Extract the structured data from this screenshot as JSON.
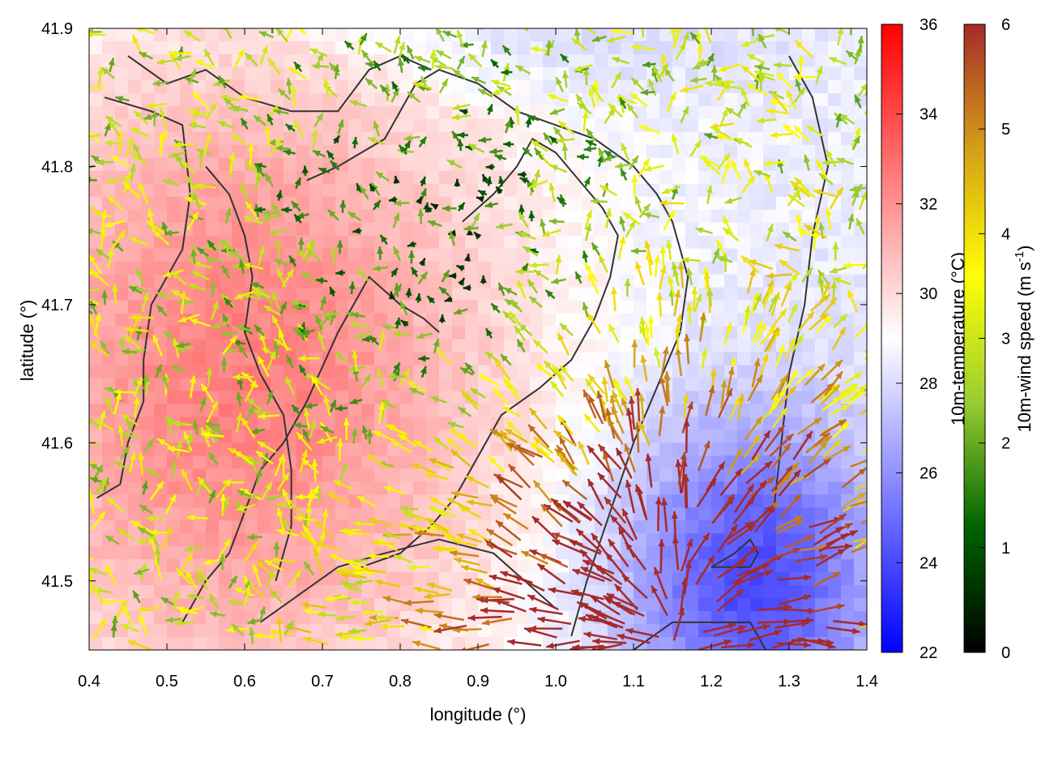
{
  "chart_data": {
    "type": "heatmap",
    "subtype": "wind vector field over temperature map",
    "xlabel": "longitude (°)",
    "ylabel": "latitude (°)",
    "xlim": [
      0.4,
      1.4
    ],
    "ylim": [
      41.45,
      41.9
    ],
    "x_ticks": [
      "0.4",
      "0.5",
      "0.6",
      "0.7",
      "0.8",
      "0.9",
      "1.0",
      "1.1",
      "1.2",
      "1.3",
      "1.4"
    ],
    "y_ticks": [
      "41.5",
      "41.6",
      "41.7",
      "41.8",
      "41.9"
    ],
    "temperature_colorbar": {
      "label": "10m-temperature (°C)",
      "range": [
        22,
        36
      ],
      "ticks": [
        "22",
        "24",
        "26",
        "28",
        "30",
        "32",
        "34",
        "36"
      ],
      "colors": [
        "#0000ff",
        "#ffffff",
        "#ff0000"
      ]
    },
    "wind_colorbar": {
      "label_main": "10m-wind speed (m s",
      "label_sup": "-1",
      "label_end": ")",
      "range": [
        0,
        6
      ],
      "ticks": [
        "0",
        "1",
        "2",
        "3",
        "4",
        "5",
        "6"
      ],
      "colors": [
        "#000000",
        "#006400",
        "#9acd32",
        "#ffff00",
        "#d4a017",
        "#a52a2a"
      ]
    },
    "temperature_field": {
      "description": "warm (31-33 °C) over western/central land, cooler (24-27 °C) in south-east sea area and north edge",
      "warm_center": [
        0.6,
        41.65
      ],
      "warm_value": 32.5,
      "cool_center": [
        1.25,
        41.5
      ],
      "cool_value": 24.0,
      "north_cool_center": [
        0.95,
        41.9
      ],
      "north_cool_value": 27.5
    },
    "wind_field": {
      "description": "strong (5-6 m/s) onshore flow from south-east converging toward north-west; weak (1-2 m/s) winds in central-north",
      "strong_source": [
        1.15,
        41.45
      ],
      "calm_center": [
        0.85,
        41.75
      ]
    },
    "contours": [
      [
        [
          0.42,
          41.85
        ],
        [
          0.48,
          41.84
        ],
        [
          0.52,
          41.83
        ],
        [
          0.53,
          41.78
        ],
        [
          0.52,
          41.74
        ],
        [
          0.5,
          41.72
        ],
        [
          0.48,
          41.7
        ],
        [
          0.47,
          41.66
        ],
        [
          0.47,
          41.63
        ],
        [
          0.45,
          41.6
        ],
        [
          0.44,
          41.57
        ],
        [
          0.41,
          41.56
        ]
      ],
      [
        [
          0.52,
          41.47
        ],
        [
          0.55,
          41.5
        ],
        [
          0.58,
          41.52
        ],
        [
          0.6,
          41.55
        ],
        [
          0.62,
          41.58
        ],
        [
          0.65,
          41.6
        ],
        [
          0.68,
          41.63
        ],
        [
          0.72,
          41.68
        ],
        [
          0.76,
          41.72
        ],
        [
          0.8,
          41.7
        ],
        [
          0.83,
          41.69
        ],
        [
          0.85,
          41.68
        ]
      ],
      [
        [
          0.62,
          41.47
        ],
        [
          0.67,
          41.49
        ],
        [
          0.72,
          41.51
        ],
        [
          0.78,
          41.52
        ],
        [
          0.85,
          41.53
        ],
        [
          0.92,
          41.52
        ],
        [
          0.96,
          41.5
        ],
        [
          1.0,
          41.48
        ]
      ],
      [
        [
          0.68,
          41.79
        ],
        [
          0.72,
          41.8
        ],
        [
          0.78,
          41.82
        ],
        [
          0.82,
          41.86
        ],
        [
          0.85,
          41.87
        ],
        [
          0.9,
          41.86
        ],
        [
          0.95,
          41.84
        ],
        [
          1.0,
          41.83
        ],
        [
          1.05,
          41.82
        ],
        [
          1.1,
          41.8
        ],
        [
          1.13,
          41.78
        ],
        [
          1.15,
          41.76
        ],
        [
          1.17,
          41.72
        ],
        [
          1.16,
          41.68
        ],
        [
          1.13,
          41.64
        ],
        [
          1.1,
          41.6
        ],
        [
          1.07,
          41.55
        ],
        [
          1.04,
          41.5
        ],
        [
          1.02,
          41.46
        ]
      ],
      [
        [
          0.45,
          41.88
        ],
        [
          0.5,
          41.86
        ],
        [
          0.55,
          41.87
        ],
        [
          0.6,
          41.85
        ],
        [
          0.66,
          41.84
        ],
        [
          0.72,
          41.84
        ],
        [
          0.76,
          41.87
        ],
        [
          0.8,
          41.88
        ],
        [
          0.84,
          41.87
        ]
      ],
      [
        [
          1.1,
          41.45
        ],
        [
          1.15,
          41.47
        ],
        [
          1.2,
          41.47
        ],
        [
          1.25,
          41.47
        ],
        [
          1.27,
          41.45
        ]
      ],
      [
        [
          1.2,
          41.51
        ],
        [
          1.23,
          41.52
        ],
        [
          1.25,
          41.53
        ],
        [
          1.26,
          41.52
        ],
        [
          1.25,
          41.51
        ],
        [
          1.2,
          41.51
        ]
      ],
      [
        [
          0.88,
          41.76
        ],
        [
          0.92,
          41.78
        ],
        [
          0.95,
          41.8
        ],
        [
          0.97,
          41.82
        ],
        [
          1.0,
          41.81
        ],
        [
          1.03,
          41.79
        ],
        [
          1.06,
          41.77
        ],
        [
          1.08,
          41.75
        ],
        [
          1.07,
          41.72
        ],
        [
          1.05,
          41.69
        ],
        [
          1.02,
          41.66
        ],
        [
          0.98,
          41.64
        ],
        [
          0.93,
          41.62
        ],
        [
          0.9,
          41.59
        ],
        [
          0.87,
          41.56
        ],
        [
          0.84,
          41.54
        ],
        [
          0.8,
          41.52
        ],
        [
          0.75,
          41.51
        ]
      ],
      [
        [
          1.3,
          41.88
        ],
        [
          1.33,
          41.85
        ],
        [
          1.35,
          41.8
        ],
        [
          1.33,
          41.75
        ],
        [
          1.32,
          41.7
        ],
        [
          1.3,
          41.65
        ],
        [
          1.29,
          41.6
        ],
        [
          1.28,
          41.55
        ]
      ],
      [
        [
          0.55,
          41.8
        ],
        [
          0.58,
          41.78
        ],
        [
          0.6,
          41.75
        ],
        [
          0.61,
          41.72
        ],
        [
          0.6,
          41.68
        ],
        [
          0.62,
          41.65
        ],
        [
          0.65,
          41.62
        ],
        [
          0.66,
          41.58
        ],
        [
          0.66,
          41.54
        ],
        [
          0.64,
          41.5
        ]
      ]
    ]
  }
}
